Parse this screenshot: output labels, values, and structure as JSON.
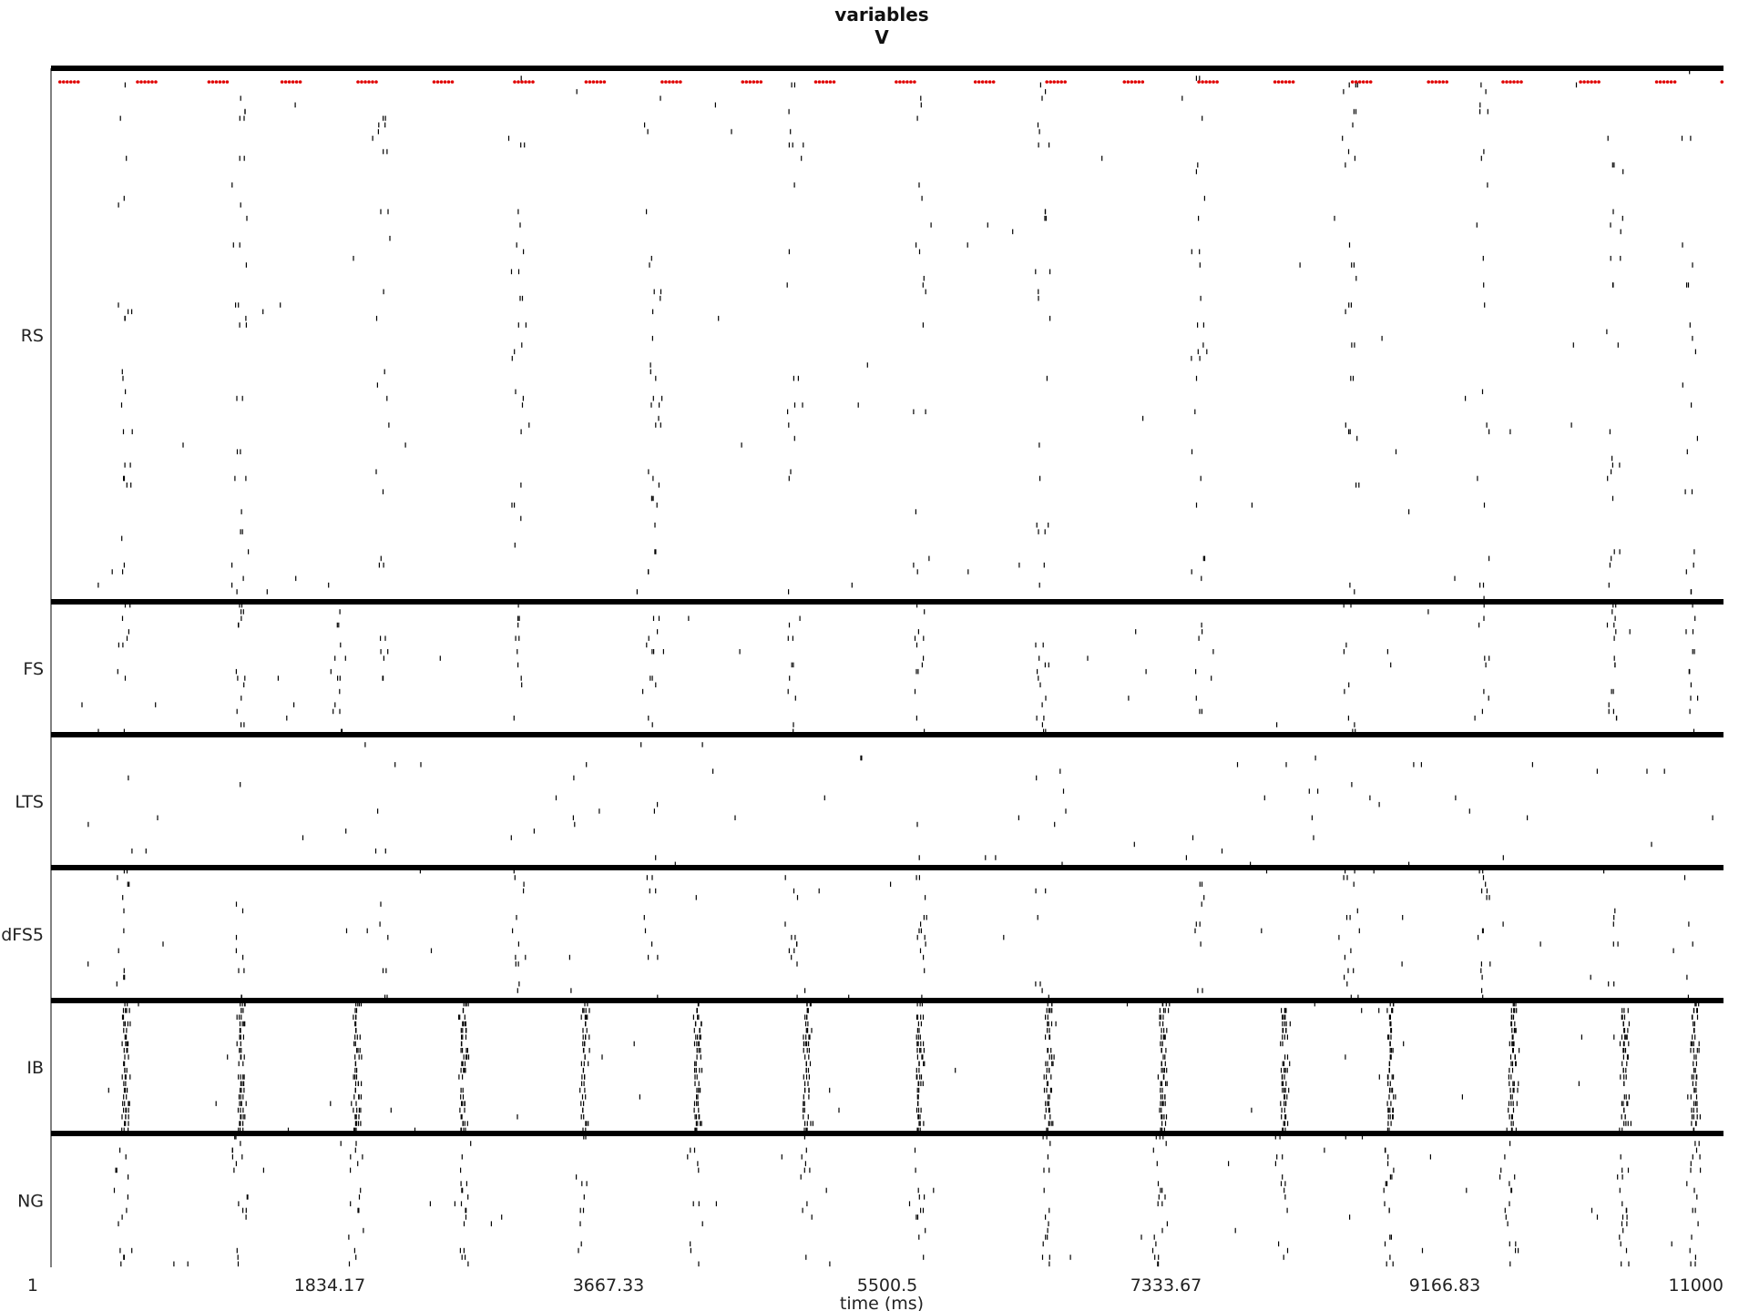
{
  "chart_data": {
    "type": "raster",
    "title_lines": [
      "variables",
      "V"
    ],
    "xlabel": "time (ms)",
    "xlim": [
      1,
      11000
    ],
    "xticks": [
      1,
      1834.17,
      3667.33,
      5500.5,
      7333.67,
      9166.83,
      11000
    ],
    "xtick_labels": [
      "1",
      "1834.17",
      "3667.33",
      "5500.5",
      "7333.67",
      "9166.83",
      "11000"
    ],
    "populations": [
      {
        "name": "RS",
        "neurons": 80,
        "burst_times": [
          480,
          1240,
          2180,
          3070,
          3950,
          4880,
          5720,
          6510,
          7560,
          8540,
          9420,
          10280,
          10780
        ],
        "burst_prob": 0.22,
        "jitter": 90,
        "background_spikes": 55,
        "stim_times": [
          60,
          570,
          1040,
          1520,
          2020,
          2520,
          3050,
          3520,
          4020,
          4550,
          5030,
          5560,
          6080,
          6550,
          7060,
          7550,
          8050,
          8560,
          9060,
          9550,
          10060,
          10560,
          10990
        ]
      },
      {
        "name": "FS",
        "neurons": 20,
        "burst_times": [
          480,
          1240,
          1880,
          2180,
          3070,
          3950,
          4880,
          5720,
          6510,
          7560,
          8540,
          9420,
          10280,
          10780
        ],
        "burst_prob": 0.4,
        "jitter": 70,
        "background_spikes": 25
      },
      {
        "name": "LTS",
        "neurons": 20,
        "burst_times": [
          1120,
          2580,
          3870,
          4000,
          5290,
          6630,
          8320,
          9720,
          10540
        ],
        "burst_prob": 0.12,
        "jitter": 140,
        "background_spikes": 55
      },
      {
        "name": "dFS5",
        "neurons": 20,
        "burst_times": [
          480,
          1240,
          2180,
          3070,
          3950,
          4880,
          5720,
          6510,
          7560,
          8540,
          9420,
          10280,
          10780
        ],
        "burst_prob": 0.4,
        "jitter": 80,
        "background_spikes": 30
      },
      {
        "name": "IB",
        "neurons": 20,
        "burst_times": [
          480,
          1240,
          2000,
          2700,
          3500,
          4240,
          4960,
          5700,
          6550,
          7300,
          8100,
          8800,
          9600,
          10340,
          10800
        ],
        "burst_prob": 0.95,
        "jitter": 30,
        "background_spikes": 30
      },
      {
        "name": "NG",
        "neurons": 20,
        "burst_times": [
          480,
          1240,
          2000,
          2700,
          3500,
          4240,
          4960,
          5700,
          6550,
          7300,
          8100,
          8800,
          9600,
          10340,
          10800
        ],
        "burst_prob": 0.6,
        "jitter": 90,
        "background_spikes": 35
      }
    ],
    "stim_marker_color": "#e00000",
    "spike_color": "#000000",
    "divider_color": "#000000"
  }
}
